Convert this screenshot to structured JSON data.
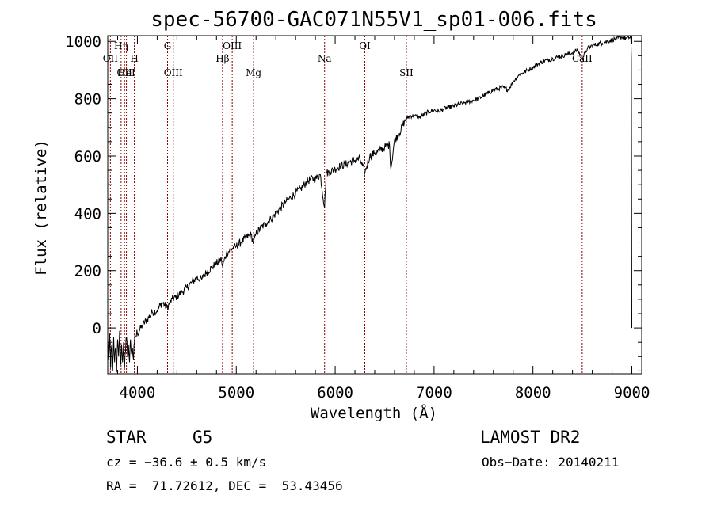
{
  "chart_data": {
    "type": "line",
    "title": "spec-56700-GAC071N55V1_sp01-006.fits",
    "xlabel": "Wavelength (Å)",
    "ylabel": "Flux (relative)",
    "xlim": [
      3700,
      9100
    ],
    "ylim": [
      -160,
      1020
    ],
    "xticks": [
      4000,
      5000,
      6000,
      7000,
      8000,
      9000
    ],
    "yticks": [
      0,
      200,
      400,
      600,
      800,
      1000
    ],
    "grid": false,
    "line_color": "#000000",
    "marker_color": "#8b0000",
    "line_markers": [
      {
        "label": "OII",
        "x": 3727,
        "row": 2
      },
      {
        "label": "Hη",
        "x": 3835,
        "row": 1
      },
      {
        "label": "OII",
        "x": 3870,
        "row": 3
      },
      {
        "label": "HeI",
        "x": 3889,
        "row": 3
      },
      {
        "label": "H",
        "x": 3969,
        "row": 2
      },
      {
        "label": "G",
        "x": 4305,
        "row": 1
      },
      {
        "label": "OIII",
        "x": 4363,
        "row": 3
      },
      {
        "label": "Hβ",
        "x": 4861,
        "row": 2
      },
      {
        "label": "OIII",
        "x": 4959,
        "row": 1
      },
      {
        "label": "Mg",
        "x": 5175,
        "row": 3
      },
      {
        "label": "Na",
        "x": 5893,
        "row": 2
      },
      {
        "label": "OI",
        "x": 6300,
        "row": 1
      },
      {
        "label": "SII",
        "x": 6720,
        "row": 3
      },
      {
        "label": "CaII",
        "x": 8498,
        "row": 2
      }
    ],
    "series": [
      {
        "points": [
          [
            3700,
            -40
          ],
          [
            3710,
            -110
          ],
          [
            3720,
            -20
          ],
          [
            3730,
            -140
          ],
          [
            3740,
            -60
          ],
          [
            3750,
            -150
          ],
          [
            3760,
            -30
          ],
          [
            3770,
            -120
          ],
          [
            3780,
            -70
          ],
          [
            3790,
            -155
          ],
          [
            3800,
            -40
          ],
          [
            3810,
            -100
          ],
          [
            3820,
            -10
          ],
          [
            3830,
            -130
          ],
          [
            3840,
            -60
          ],
          [
            3850,
            -120
          ],
          [
            3860,
            -50
          ],
          [
            3870,
            -140
          ],
          [
            3880,
            -80
          ],
          [
            3890,
            -30
          ],
          [
            3900,
            -100
          ],
          [
            3910,
            -60
          ],
          [
            3920,
            -120
          ],
          [
            3930,
            -40
          ],
          [
            3940,
            -90
          ],
          [
            3950,
            -70
          ],
          [
            3960,
            -110
          ],
          [
            3970,
            -50
          ],
          [
            3980,
            -30
          ],
          [
            4000,
            -20
          ],
          [
            4050,
            10
          ],
          [
            4100,
            30
          ],
          [
            4150,
            55
          ],
          [
            4200,
            60
          ],
          [
            4250,
            90
          ],
          [
            4300,
            70
          ],
          [
            4350,
            100
          ],
          [
            4400,
            110
          ],
          [
            4450,
            125
          ],
          [
            4500,
            140
          ],
          [
            4550,
            160
          ],
          [
            4600,
            175
          ],
          [
            4650,
            170
          ],
          [
            4700,
            195
          ],
          [
            4750,
            210
          ],
          [
            4800,
            225
          ],
          [
            4850,
            240
          ],
          [
            4861,
            215
          ],
          [
            4900,
            260
          ],
          [
            4950,
            275
          ],
          [
            5000,
            285
          ],
          [
            5050,
            300
          ],
          [
            5100,
            315
          ],
          [
            5150,
            325
          ],
          [
            5175,
            295
          ],
          [
            5200,
            330
          ],
          [
            5250,
            350
          ],
          [
            5300,
            365
          ],
          [
            5350,
            380
          ],
          [
            5400,
            400
          ],
          [
            5450,
            420
          ],
          [
            5500,
            440
          ],
          [
            5550,
            455
          ],
          [
            5600,
            470
          ],
          [
            5650,
            485
          ],
          [
            5700,
            505
          ],
          [
            5750,
            520
          ],
          [
            5800,
            520
          ],
          [
            5850,
            535
          ],
          [
            5893,
            420
          ],
          [
            5910,
            540
          ],
          [
            5950,
            545
          ],
          [
            6000,
            555
          ],
          [
            6050,
            565
          ],
          [
            6100,
            570
          ],
          [
            6150,
            580
          ],
          [
            6200,
            585
          ],
          [
            6250,
            590
          ],
          [
            6300,
            540
          ],
          [
            6350,
            600
          ],
          [
            6400,
            610
          ],
          [
            6450,
            620
          ],
          [
            6500,
            630
          ],
          [
            6550,
            640
          ],
          [
            6563,
            555
          ],
          [
            6600,
            655
          ],
          [
            6650,
            680
          ],
          [
            6700,
            720
          ],
          [
            6750,
            740
          ],
          [
            6800,
            740
          ],
          [
            6850,
            735
          ],
          [
            6900,
            745
          ],
          [
            6950,
            755
          ],
          [
            7000,
            760
          ],
          [
            7050,
            755
          ],
          [
            7100,
            765
          ],
          [
            7150,
            770
          ],
          [
            7200,
            775
          ],
          [
            7250,
            780
          ],
          [
            7300,
            785
          ],
          [
            7350,
            790
          ],
          [
            7400,
            795
          ],
          [
            7450,
            800
          ],
          [
            7500,
            810
          ],
          [
            7550,
            820
          ],
          [
            7600,
            830
          ],
          [
            7650,
            835
          ],
          [
            7700,
            840
          ],
          [
            7750,
            830
          ],
          [
            7800,
            860
          ],
          [
            7850,
            880
          ],
          [
            7900,
            890
          ],
          [
            7950,
            900
          ],
          [
            8000,
            910
          ],
          [
            8050,
            920
          ],
          [
            8100,
            930
          ],
          [
            8150,
            935
          ],
          [
            8200,
            940
          ],
          [
            8250,
            945
          ],
          [
            8300,
            950
          ],
          [
            8350,
            955
          ],
          [
            8400,
            960
          ],
          [
            8450,
            970
          ],
          [
            8498,
            940
          ],
          [
            8550,
            975
          ],
          [
            8600,
            985
          ],
          [
            8650,
            990
          ],
          [
            8700,
            995
          ],
          [
            8750,
            1000
          ],
          [
            8800,
            1005
          ],
          [
            8850,
            1010
          ],
          [
            8900,
            1015
          ],
          [
            8950,
            1010
          ],
          [
            8990,
            1015
          ],
          [
            8995,
            940
          ],
          [
            9000,
            0
          ]
        ]
      }
    ]
  },
  "info": {
    "object_type": "STAR",
    "subclass": "G5",
    "survey": "LAMOST DR2",
    "cz": "cz = −36.6 ± 0.5 km/s",
    "obs_date": "Obs−Date: 20140211",
    "radec": "RA =  71.72612, DEC =  53.43456"
  }
}
